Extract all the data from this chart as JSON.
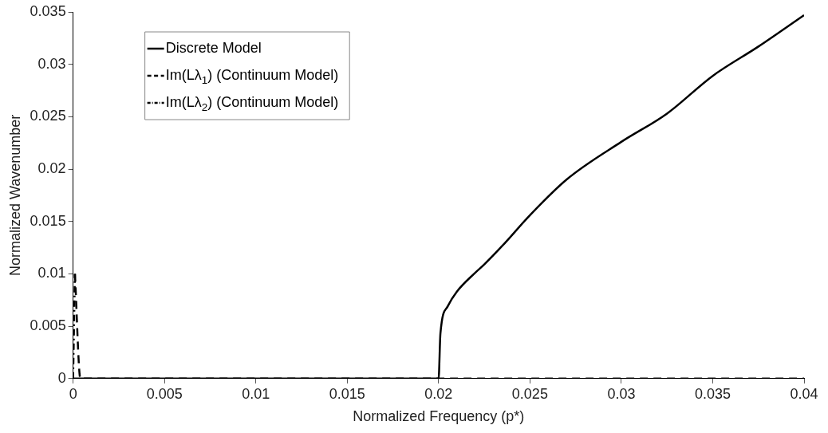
{
  "chart_data": {
    "type": "line",
    "xlabel": "Normalized Frequency (p*)",
    "ylabel": "Normalized Wavenumber",
    "xlim": [
      0,
      0.04
    ],
    "xticks": [
      0,
      0.005,
      0.01,
      0.015,
      0.02,
      0.025,
      0.03,
      0.035,
      0.04
    ],
    "ylim": [
      0,
      0.035
    ],
    "yticks": [
      0,
      0.005,
      0.01,
      0.015,
      0.02,
      0.025,
      0.03,
      0.035
    ],
    "grid": false,
    "legend": "top left",
    "marker": "none",
    "series": [
      {
        "name": "Discrete Model",
        "color": "#000000",
        "line_style": "solid",
        "x": [
          0,
          0.02,
          0.0201,
          0.0205,
          0.021,
          0.022,
          0.0225,
          0.0235,
          0.025,
          0.027,
          0.03,
          0.0325,
          0.035,
          0.0375,
          0.04
        ],
        "values": [
          0,
          0,
          0.0043,
          0.0069,
          0.0083,
          0.0101,
          0.0109,
          0.0127,
          0.0156,
          0.019,
          0.0226,
          0.0253,
          0.0289,
          0.0317,
          0.0347
        ]
      },
      {
        "name": "Im(Lλ$_{1}$) (Continuum Model)",
        "color": "#000000",
        "line_style": "dashed",
        "x": [
          0.0001,
          0.0004,
          0.02,
          0.04
        ],
        "values": [
          0.01,
          0,
          0,
          0
        ]
      },
      {
        "name": "Im(Lλ$_{2}$) (Continuum Model)",
        "color": "#000000",
        "line_style": "dotted",
        "x": [
          0,
          0.0001
        ],
        "values": [
          0,
          0.01
        ]
      }
    ]
  }
}
